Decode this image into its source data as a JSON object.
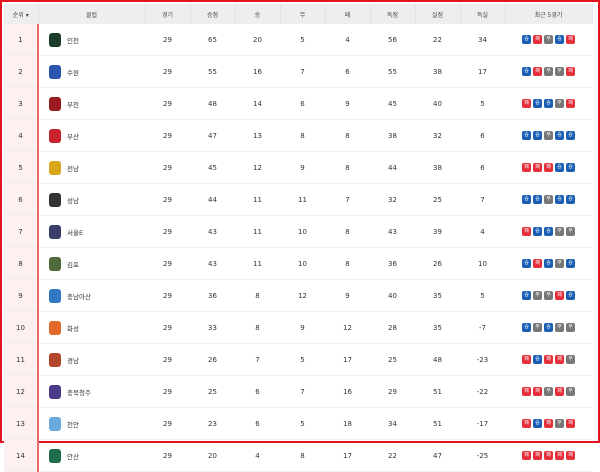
{
  "headers": [
    "순위 ▾",
    "클럽",
    "경기",
    "승점",
    "승",
    "무",
    "패",
    "득점",
    "실점",
    "득실",
    "최근 5경기"
  ],
  "colors": {
    "win": "#1a5fb4",
    "loss": "#e5303a",
    "draw": "#777777",
    "border": "#e0141e"
  },
  "rows": [
    {
      "rank": "1",
      "club": "인천",
      "logo": "#1c3d2a",
      "gp": "29",
      "pts": "65",
      "w": "20",
      "d": "5",
      "l": "4",
      "gf": "56",
      "ga": "22",
      "gd": "34",
      "form": [
        "승",
        "패",
        "무",
        "승",
        "패"
      ]
    },
    {
      "rank": "2",
      "club": "수원",
      "logo": "#2a56b0",
      "gp": "29",
      "pts": "55",
      "w": "16",
      "d": "7",
      "l": "6",
      "gf": "55",
      "ga": "38",
      "gd": "17",
      "form": [
        "승",
        "패",
        "무",
        "무",
        "패"
      ]
    },
    {
      "rank": "3",
      "club": "부천",
      "logo": "#9a1b20",
      "gp": "29",
      "pts": "48",
      "w": "14",
      "d": "6",
      "l": "9",
      "gf": "45",
      "ga": "40",
      "gd": "5",
      "form": [
        "패",
        "승",
        "승",
        "무",
        "패"
      ]
    },
    {
      "rank": "4",
      "club": "부산",
      "logo": "#c8232c",
      "gp": "29",
      "pts": "47",
      "w": "13",
      "d": "8",
      "l": "8",
      "gf": "38",
      "ga": "32",
      "gd": "6",
      "form": [
        "승",
        "승",
        "무",
        "승",
        "승"
      ]
    },
    {
      "rank": "5",
      "club": "전남",
      "logo": "#d8a81a",
      "gp": "29",
      "pts": "45",
      "w": "12",
      "d": "9",
      "l": "8",
      "gf": "44",
      "ga": "38",
      "gd": "6",
      "form": [
        "패",
        "패",
        "패",
        "승",
        "승"
      ]
    },
    {
      "rank": "6",
      "club": "성남",
      "logo": "#333333",
      "gp": "29",
      "pts": "44",
      "w": "11",
      "d": "11",
      "l": "7",
      "gf": "32",
      "ga": "25",
      "gd": "7",
      "form": [
        "승",
        "승",
        "무",
        "승",
        "승"
      ]
    },
    {
      "rank": "7",
      "club": "서울E",
      "logo": "#3a3f6a",
      "gp": "29",
      "pts": "43",
      "w": "11",
      "d": "10",
      "l": "8",
      "gf": "43",
      "ga": "39",
      "gd": "4",
      "form": [
        "패",
        "승",
        "승",
        "무",
        "무"
      ]
    },
    {
      "rank": "8",
      "club": "김포",
      "logo": "#4f6b3a",
      "gp": "29",
      "pts": "43",
      "w": "11",
      "d": "10",
      "l": "8",
      "gf": "36",
      "ga": "26",
      "gd": "10",
      "form": [
        "승",
        "패",
        "승",
        "무",
        "승"
      ]
    },
    {
      "rank": "9",
      "club": "충남아산",
      "logo": "#2f78c4",
      "gp": "29",
      "pts": "36",
      "w": "8",
      "d": "12",
      "l": "9",
      "gf": "40",
      "ga": "35",
      "gd": "5",
      "form": [
        "승",
        "무",
        "무",
        "패",
        "승"
      ]
    },
    {
      "rank": "10",
      "club": "화성",
      "logo": "#e2672a",
      "gp": "29",
      "pts": "33",
      "w": "8",
      "d": "9",
      "l": "12",
      "gf": "28",
      "ga": "35",
      "gd": "-7",
      "form": [
        "승",
        "무",
        "승",
        "무",
        "무"
      ]
    },
    {
      "rank": "11",
      "club": "경남",
      "logo": "#b4462a",
      "gp": "29",
      "pts": "26",
      "w": "7",
      "d": "5",
      "l": "17",
      "gf": "25",
      "ga": "48",
      "gd": "-23",
      "form": [
        "패",
        "승",
        "패",
        "패",
        "무"
      ]
    },
    {
      "rank": "12",
      "club": "충북청주",
      "logo": "#4b3a8a",
      "gp": "29",
      "pts": "25",
      "w": "6",
      "d": "7",
      "l": "16",
      "gf": "29",
      "ga": "51",
      "gd": "-22",
      "form": [
        "패",
        "패",
        "무",
        "패",
        "무"
      ]
    },
    {
      "rank": "13",
      "club": "천안",
      "logo": "#6aa8de",
      "gp": "29",
      "pts": "23",
      "w": "6",
      "d": "5",
      "l": "18",
      "gf": "34",
      "ga": "51",
      "gd": "-17",
      "form": [
        "패",
        "승",
        "패",
        "무",
        "패"
      ]
    },
    {
      "rank": "14",
      "club": "안산",
      "logo": "#1f6b4a",
      "gp": "29",
      "pts": "20",
      "w": "4",
      "d": "8",
      "l": "17",
      "gf": "22",
      "ga": "47",
      "gd": "-25",
      "form": [
        "패",
        "패",
        "패",
        "패",
        "패"
      ]
    }
  ]
}
